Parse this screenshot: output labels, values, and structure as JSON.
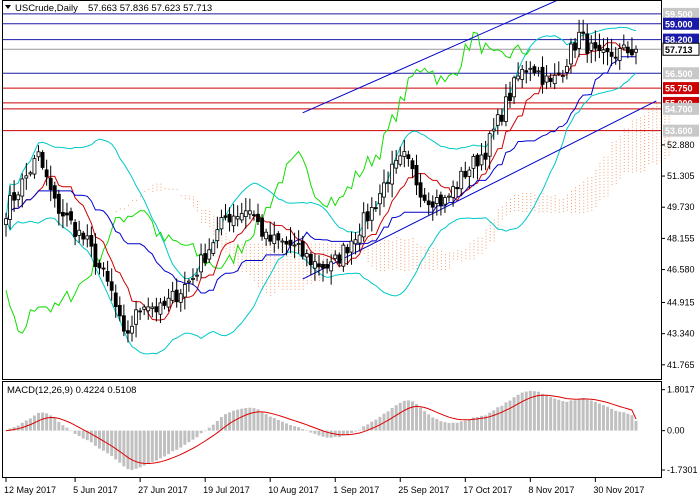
{
  "header": {
    "symbol": "USCrude,Daily",
    "ohlc": "57.663 57.836 57.623 57.713"
  },
  "macd": {
    "label": "MACD(12,26,9) 0.4224 0.5108",
    "ylim": [
      -1.95,
      2.05
    ],
    "ticks": [
      "1.8017",
      "0.00",
      "-1.7301"
    ],
    "tick_values": [
      1.8017,
      0.0,
      -1.7301
    ]
  },
  "chart_data": {
    "type": "candlestick",
    "title": "USCrude,Daily",
    "ylim": [
      41.2,
      60.0
    ],
    "y_ticks": [
      {
        "value": 52.88,
        "label": "52.880"
      },
      {
        "value": 51.305,
        "label": "51.305"
      },
      {
        "value": 49.73,
        "label": "49.730"
      },
      {
        "value": 48.155,
        "label": "48.155"
      },
      {
        "value": 46.58,
        "label": "46.580"
      },
      {
        "value": 44.915,
        "label": "44.915"
      },
      {
        "value": 43.34,
        "label": "43.340"
      },
      {
        "value": 41.765,
        "label": "41.765"
      }
    ],
    "x_ticks": [
      {
        "index": 0,
        "label": "12 May 2017"
      },
      {
        "index": 17,
        "label": "5 Jun 2017"
      },
      {
        "index": 33,
        "label": "27 Jun 2017"
      },
      {
        "index": 49,
        "label": "19 Jul 2017"
      },
      {
        "index": 65,
        "label": "10 Aug 2017"
      },
      {
        "index": 81,
        "label": "1 Sep 2017"
      },
      {
        "index": 97,
        "label": "25 Sep 2017"
      },
      {
        "index": 113,
        "label": "17 Oct 2017"
      },
      {
        "index": 129,
        "label": "8 Nov 2017"
      },
      {
        "index": 145,
        "label": "30 Nov 2017"
      }
    ],
    "levels": [
      {
        "value": 59.5,
        "label": "59.500",
        "kind": "grey",
        "color": "#1a1aa8"
      },
      {
        "value": 59.0,
        "label": "59.000",
        "kind": "blue",
        "color": "#1a1aa8"
      },
      {
        "value": 58.2,
        "label": "58.200",
        "kind": "blue",
        "color": "#1a1aa8"
      },
      {
        "value": 57.713,
        "label": "57.713",
        "kind": "price",
        "color": "#000000"
      },
      {
        "value": 56.5,
        "label": "56.500",
        "kind": "grey",
        "color": "#1a1aa8"
      },
      {
        "value": 55.75,
        "label": "55.750",
        "kind": "red",
        "color": "#cc0000"
      },
      {
        "value": 55.0,
        "label": "55.000",
        "kind": "red",
        "color": "#cc0000"
      },
      {
        "value": 54.7,
        "label": "54.700",
        "kind": "grey",
        "color": "#cc0000"
      },
      {
        "value": 53.6,
        "label": "53.600",
        "kind": "grey",
        "color": "#cc0000"
      }
    ],
    "key_closes": [
      {
        "index": 0,
        "close": 49.6
      },
      {
        "index": 8,
        "close": 52.3
      },
      {
        "index": 12,
        "close": 49.9
      },
      {
        "index": 20,
        "close": 47.9
      },
      {
        "index": 26,
        "close": 45.4
      },
      {
        "index": 29,
        "close": 43.1
      },
      {
        "index": 34,
        "close": 45.0
      },
      {
        "index": 38,
        "close": 44.5
      },
      {
        "index": 46,
        "close": 46.2
      },
      {
        "index": 54,
        "close": 49.2
      },
      {
        "index": 60,
        "close": 49.7
      },
      {
        "index": 64,
        "close": 48.1
      },
      {
        "index": 70,
        "close": 47.8
      },
      {
        "index": 76,
        "close": 46.9
      },
      {
        "index": 80,
        "close": 46.7
      },
      {
        "index": 84,
        "close": 47.8
      },
      {
        "index": 90,
        "close": 49.6
      },
      {
        "index": 94,
        "close": 51.3
      },
      {
        "index": 98,
        "close": 52.2
      },
      {
        "index": 103,
        "close": 50.3
      },
      {
        "index": 108,
        "close": 50.0
      },
      {
        "index": 113,
        "close": 51.5
      },
      {
        "index": 118,
        "close": 52.6
      },
      {
        "index": 122,
        "close": 54.5
      },
      {
        "index": 126,
        "close": 56.3
      },
      {
        "index": 129,
        "close": 57.0
      },
      {
        "index": 134,
        "close": 55.9
      },
      {
        "index": 137,
        "close": 56.8
      },
      {
        "index": 141,
        "close": 58.4
      },
      {
        "index": 146,
        "close": 57.2
      },
      {
        "index": 150,
        "close": 57.5
      },
      {
        "index": 155,
        "close": 57.713
      }
    ],
    "channel": {
      "color": "#0000cc",
      "lower": [
        {
          "index": 73,
          "value": 46.1
        },
        {
          "index": 160,
          "value": 55.1
        }
      ],
      "upper": [
        {
          "index": 73,
          "value": 54.5
        },
        {
          "index": 160,
          "value": 62.4
        }
      ]
    }
  },
  "colors": {
    "candle": "#000000",
    "bollinger": "#00c8c8",
    "chikou": "#11dd00",
    "tenkan": "#cc0000",
    "kijun": "#0000cc",
    "cloud": "#f0a070",
    "macd_hist": "#c0c0c0",
    "macd_signal": "#dd0000",
    "channel": "#0000cc"
  }
}
